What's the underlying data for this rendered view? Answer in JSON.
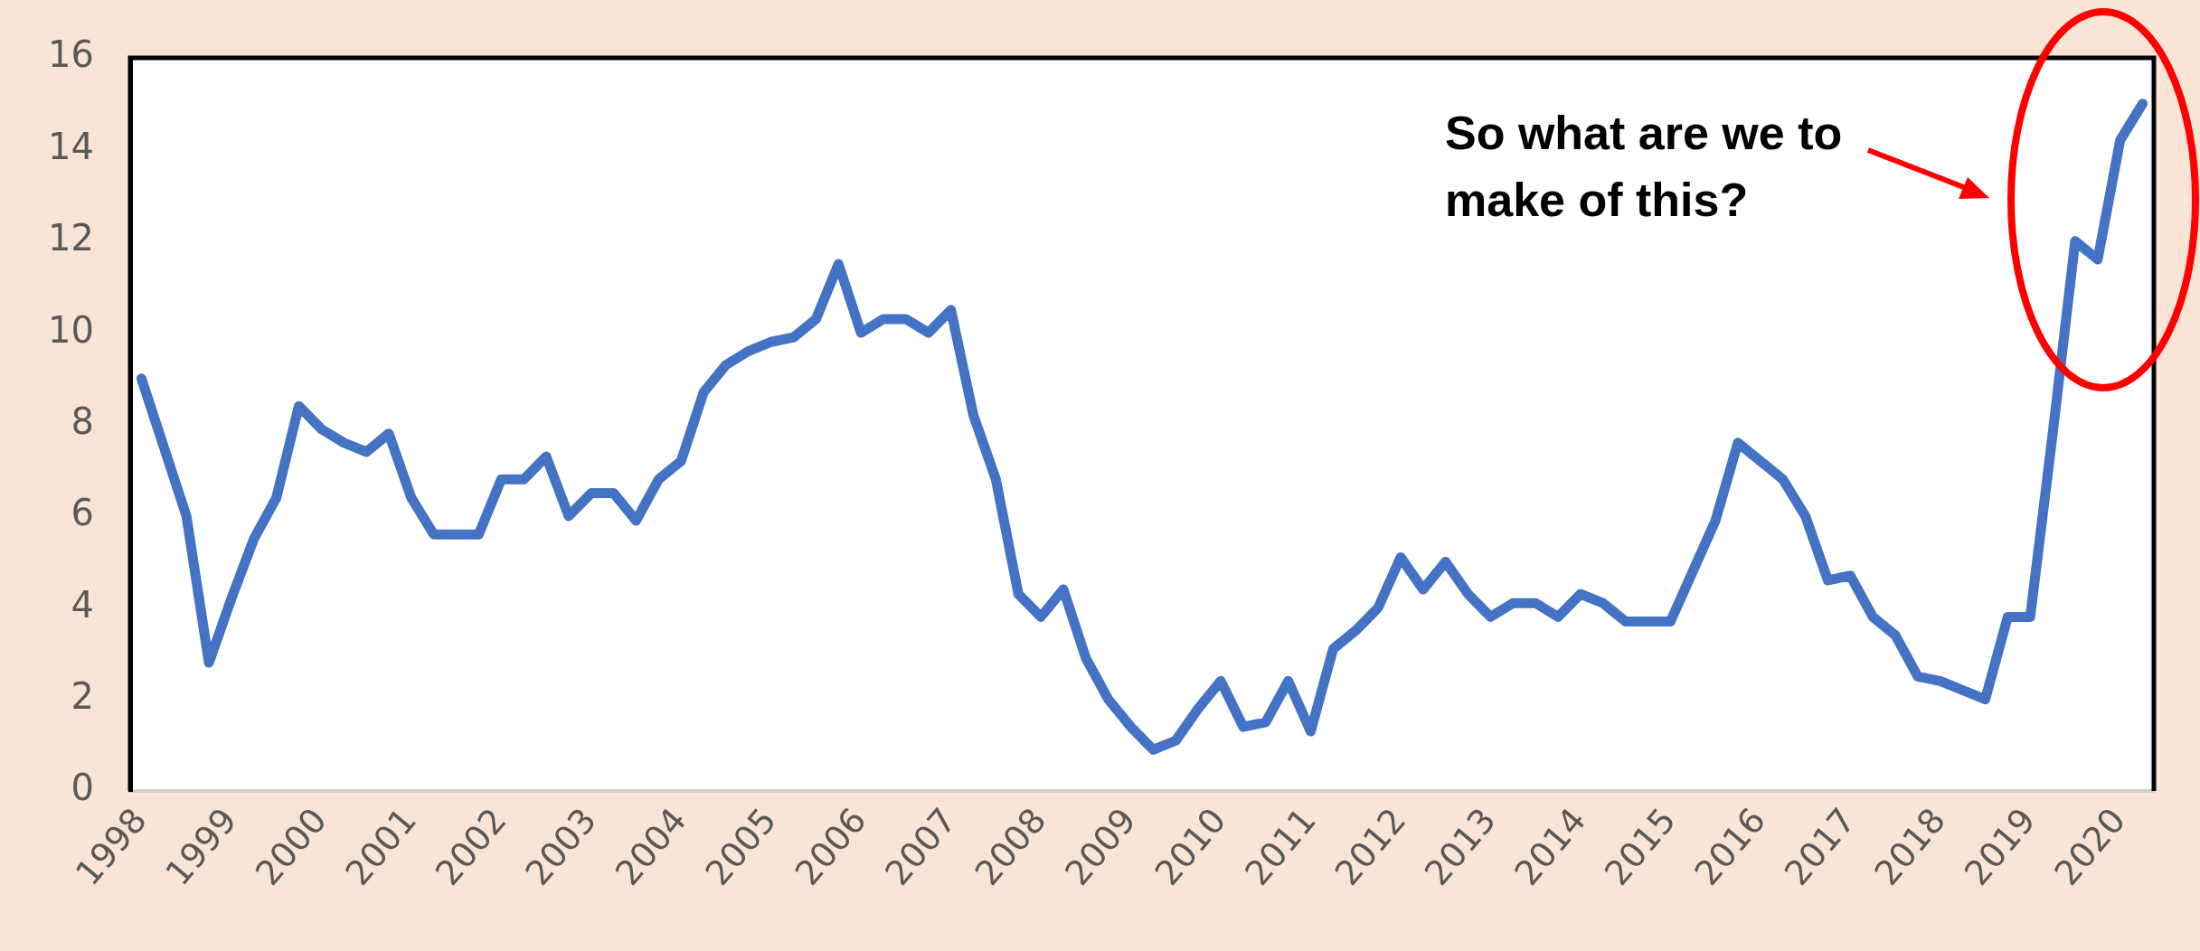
{
  "chart_data": {
    "type": "line",
    "categories": [
      "1998",
      null,
      null,
      null,
      "1999",
      null,
      null,
      null,
      "2000",
      null,
      null,
      null,
      "2001",
      null,
      null,
      null,
      "2002",
      null,
      null,
      null,
      "2003",
      null,
      null,
      null,
      "2004",
      null,
      null,
      null,
      "2005",
      null,
      null,
      null,
      "2006",
      null,
      null,
      null,
      "2007",
      null,
      null,
      null,
      "2008",
      null,
      null,
      null,
      "2009",
      null,
      null,
      null,
      "2010",
      null,
      null,
      null,
      "2011",
      null,
      null,
      null,
      "2012",
      null,
      null,
      null,
      "2013",
      null,
      null,
      null,
      "2014",
      null,
      null,
      null,
      "2015",
      null,
      null,
      null,
      "2016",
      null,
      null,
      null,
      "2017",
      null,
      null,
      null,
      "2018",
      null,
      null,
      null,
      "2019",
      null,
      null,
      null,
      "2020",
      null
    ],
    "values": [
      9.0,
      7.5,
      6.0,
      2.8,
      4.2,
      5.5,
      6.4,
      8.4,
      7.9,
      7.6,
      7.4,
      7.8,
      6.4,
      5.6,
      5.6,
      5.6,
      6.8,
      6.8,
      7.3,
      6.0,
      6.5,
      6.5,
      5.9,
      6.8,
      7.2,
      8.7,
      9.3,
      9.6,
      9.8,
      9.9,
      10.3,
      11.5,
      10.0,
      10.3,
      10.3,
      10.0,
      10.5,
      8.2,
      6.8,
      4.3,
      3.8,
      4.4,
      2.9,
      2.0,
      1.4,
      0.9,
      1.1,
      1.8,
      2.4,
      1.4,
      1.5,
      2.4,
      1.3,
      3.1,
      3.5,
      4.0,
      5.1,
      4.4,
      5.0,
      4.3,
      3.8,
      4.1,
      4.1,
      3.8,
      4.3,
      4.1,
      3.7,
      3.7,
      3.7,
      4.8,
      5.9,
      7.6,
      7.2,
      6.8,
      6.0,
      4.6,
      4.7,
      3.8,
      3.4,
      2.5,
      2.4,
      2.2,
      2.0,
      3.8,
      3.8,
      7.8,
      12.0,
      11.6,
      14.2,
      15.0
    ],
    "color": "#4472c4",
    "ylim": [
      0,
      16
    ],
    "yticks": [
      0,
      2,
      4,
      6,
      8,
      10,
      12,
      14,
      16
    ],
    "annotations": [
      "So what are we to make of this?"
    ]
  }
}
